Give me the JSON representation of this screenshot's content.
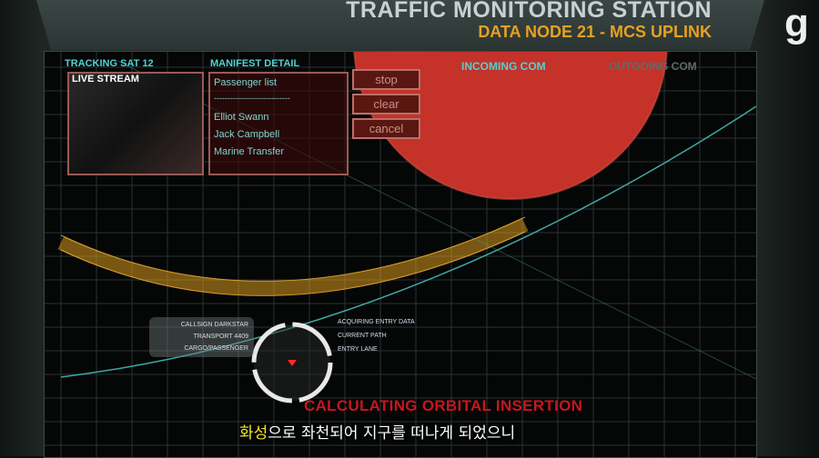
{
  "header": {
    "title": "TRAFFIC MONITORING STATION",
    "subtitle": "DATA NODE 21 - MCS UPLINK"
  },
  "logo": "g",
  "tracking": {
    "label": "TRACKING SAT 12",
    "stream_label": "LIVE STREAM"
  },
  "manifest": {
    "label": "MANIFEST DETAIL",
    "heading": "Passenger list",
    "divider": "----------------------------",
    "entries": [
      "Elliot Swann",
      "Jack Campbell",
      "Marine Transfer"
    ]
  },
  "buttons": {
    "stop": "stop",
    "clear": "clear",
    "cancel": "cancel"
  },
  "com": {
    "incoming": "INCOMING COM",
    "outgoing": "OUTGOING COM"
  },
  "ship_info": [
    "CALLSIGN DARKSTAR",
    "TRANSPORT 4409",
    "CARGO/PASSENGER"
  ],
  "status_lines": [
    "ACQUIRING ENTRY DATA",
    "CURRENT PATH",
    "ENTRY LANE"
  ],
  "banner": "CALCULATING ORBITAL INSERTION",
  "subtitle_text": {
    "highlight": "화성",
    "rest": "으로 좌천되어 지구를 떠나게 되었으니"
  },
  "colors": {
    "planet": "#c4322a",
    "orbit": "#3fa9a4",
    "band": "#d99a1e",
    "accent_teal": "#4fd3d0",
    "alert": "#c8161d",
    "subtitle_orange": "#e5a123"
  }
}
